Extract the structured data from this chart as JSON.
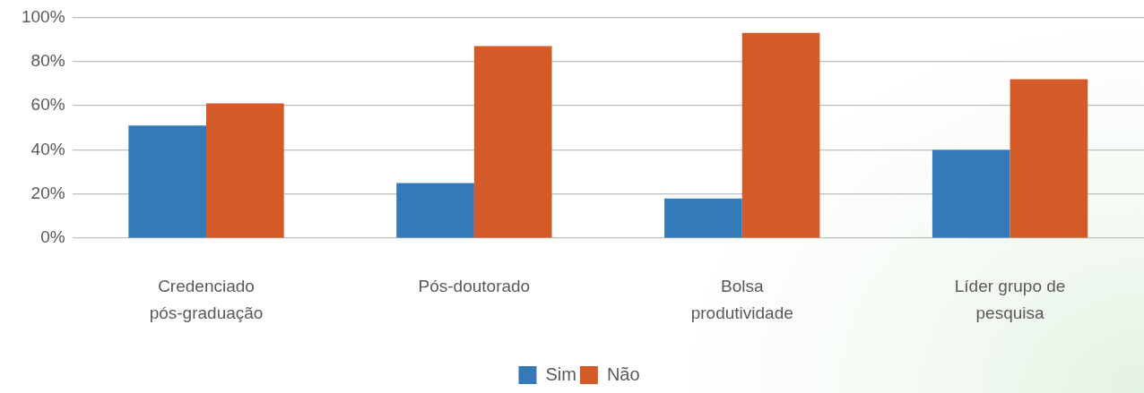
{
  "chart_data": {
    "type": "bar",
    "categories": [
      "Credenciado pós-graduação",
      "Pós-doutorado",
      "Bolsa produtividade",
      "Líder grupo de pesquisa"
    ],
    "series": [
      {
        "name": "Sim",
        "color": "#3579b8",
        "values": [
          51,
          25,
          18,
          40
        ]
      },
      {
        "name": "Não",
        "color": "#d45a27",
        "values": [
          61,
          87,
          93,
          72
        ]
      }
    ],
    "ylim": [
      0,
      100
    ],
    "yticks": [
      {
        "value": 0,
        "label": "0%"
      },
      {
        "value": 20,
        "label": "20%"
      },
      {
        "value": 40,
        "label": "40%"
      },
      {
        "value": 60,
        "label": "60%"
      },
      {
        "value": 80,
        "label": "80%"
      },
      {
        "value": 100,
        "label": "100%"
      }
    ],
    "grid": "y",
    "legend": "bottom"
  }
}
